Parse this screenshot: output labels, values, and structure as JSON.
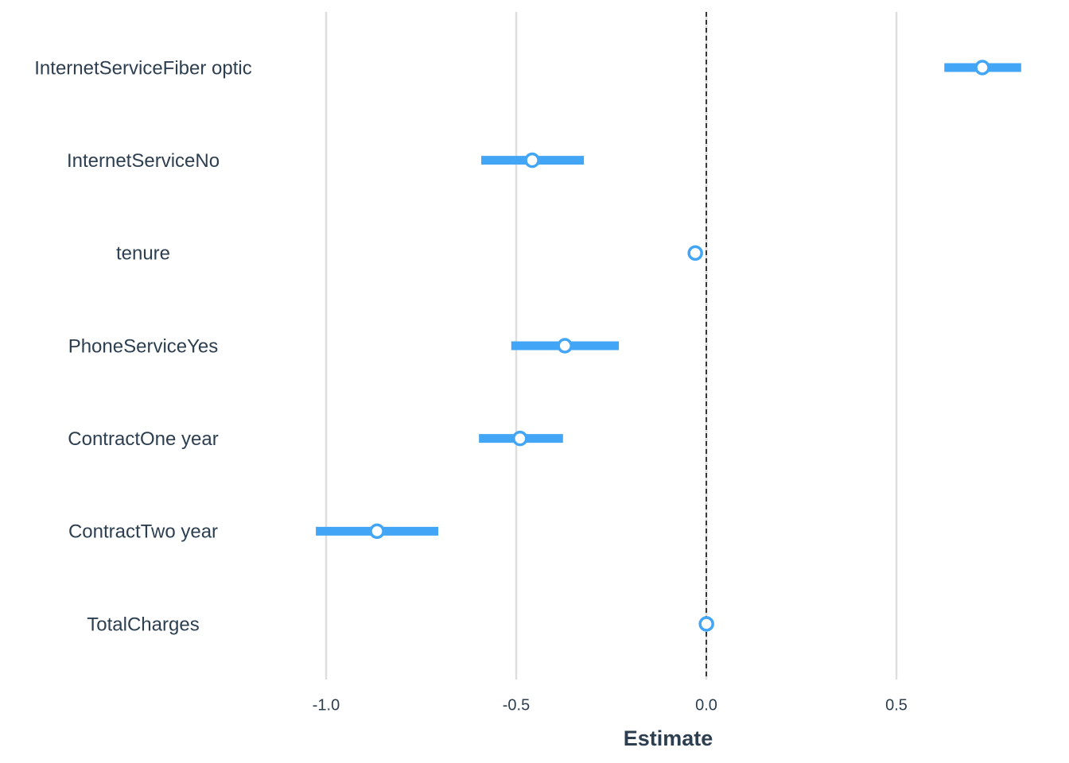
{
  "chart_data": {
    "type": "coefficient",
    "xlabel": "Estimate",
    "categories": [
      "InternetServiceFiber optic",
      "InternetServiceNo",
      "tenure",
      "PhoneServiceYes",
      "ContractOne year",
      "ContractTwo year",
      "TotalCharges"
    ],
    "values": [
      0.726,
      -0.458,
      -0.029,
      -0.372,
      -0.49,
      -0.866,
      0.0003
    ],
    "lower": [
      0.626,
      -0.592,
      -0.033,
      -0.513,
      -0.598,
      -1.027,
      0.0002
    ],
    "upper": [
      0.828,
      -0.322,
      -0.025,
      -0.23,
      -0.377,
      -0.705,
      0.0004
    ],
    "color": "#42a5f5",
    "reference_line": 0,
    "xlim": [
      -1.15,
      0.87
    ],
    "xticks": [
      {
        "value": -1,
        "label": "-1.0"
      },
      {
        "value": -0.5,
        "label": "-0.5"
      },
      {
        "value": 0,
        "label": "0.0"
      },
      {
        "value": 0.5,
        "label": "0.5"
      }
    ],
    "grid": true
  }
}
